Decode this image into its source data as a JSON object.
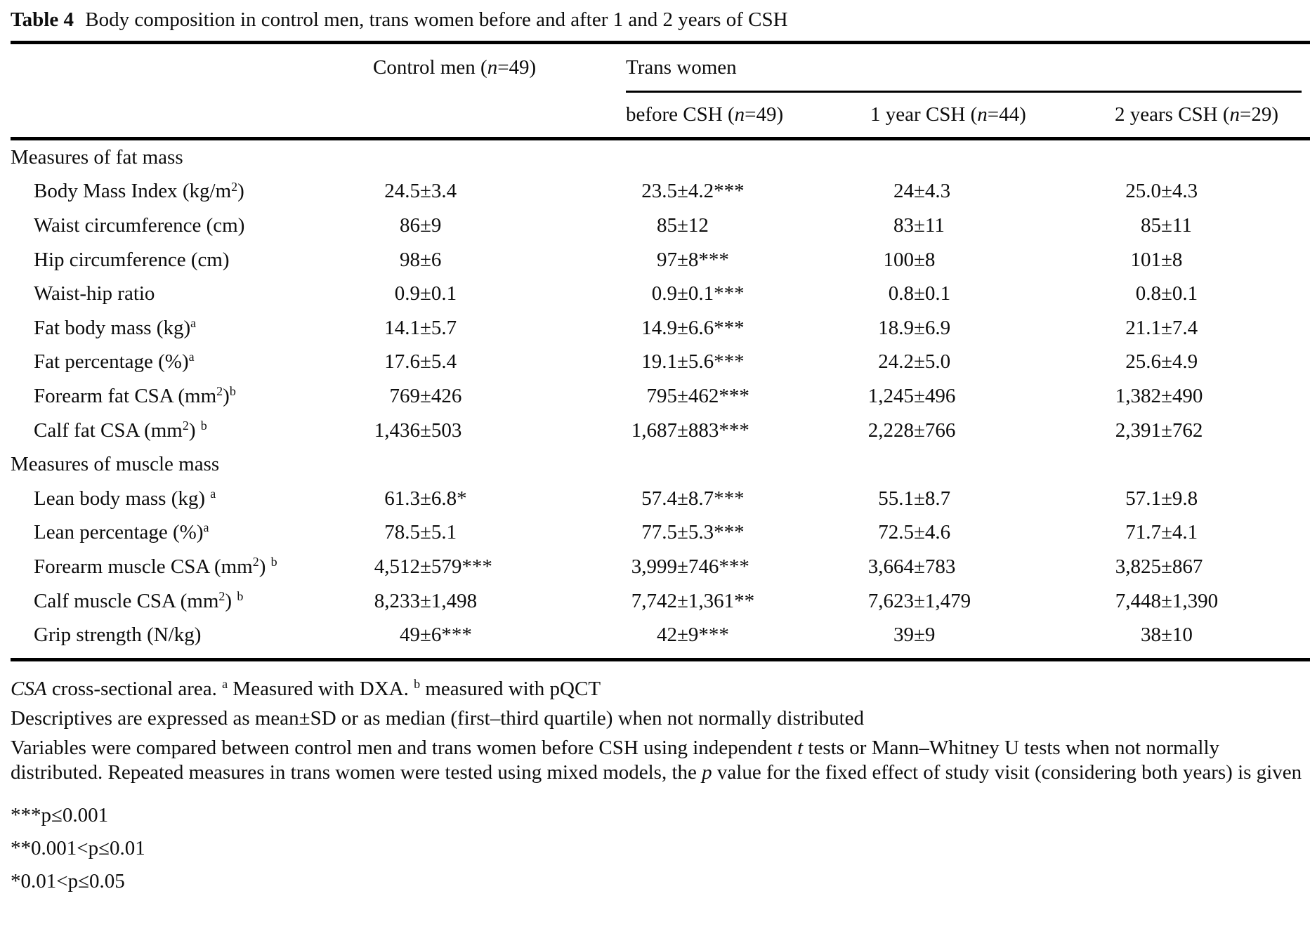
{
  "colors": {
    "text": "#0d0d0d",
    "background": "#ffffff",
    "rule": "#000000"
  },
  "title": {
    "parts": [
      {
        "b": "Table 4"
      },
      " Body composition in control men, trans women before and after 1 and 2 years of CSH"
    ]
  },
  "header": {
    "control": [
      "Control men (",
      {
        "i": "n"
      },
      "=49)"
    ],
    "group": "Trans women",
    "subcols": [
      [
        "before CSH (",
        {
          "i": "n"
        },
        "=49)"
      ],
      [
        "1 year CSH (",
        {
          "i": "n"
        },
        "=44)"
      ],
      [
        "2 years CSH (",
        {
          "i": "n"
        },
        "=29)"
      ]
    ]
  },
  "sections": [
    {
      "label": "Measures of fat mass",
      "rows": [
        {
          "label": [
            "Body Mass Index (kg/m",
            {
              "sup": "2"
            },
            ")"
          ],
          "values": [
            "24.5±3.4",
            "23.5±4.2***",
            "24±4.3",
            "25.0±4.3"
          ]
        },
        {
          "label": [
            "Waist circumference (cm)"
          ],
          "values": [
            "86±9",
            "85±12",
            "83±11",
            "85±11"
          ]
        },
        {
          "label": [
            "Hip circumference (cm)"
          ],
          "values": [
            "98±6",
            "97±8***",
            "100±8",
            "101±8"
          ]
        },
        {
          "label": [
            "Waist-hip ratio"
          ],
          "values": [
            "0.9±0.1",
            "0.9±0.1***",
            "0.8±0.1",
            "0.8±0.1"
          ]
        },
        {
          "label": [
            "Fat body mass (kg)",
            {
              "sup": "a"
            }
          ],
          "values": [
            "14.1±5.7",
            "14.9±6.6***",
            "18.9±6.9",
            "21.1±7.4"
          ]
        },
        {
          "label": [
            "Fat percentage (%)",
            {
              "sup": "a"
            }
          ],
          "values": [
            "17.6±5.4",
            "19.1±5.6***",
            "24.2±5.0",
            "25.6±4.9"
          ]
        },
        {
          "label": [
            "Forearm fat CSA (mm",
            {
              "sup": "2"
            },
            ")",
            {
              "sup": "b"
            }
          ],
          "values": [
            "769±426",
            "795±462***",
            "1,245±496",
            "1,382±490"
          ]
        },
        {
          "label": [
            "Calf fat CSA (mm",
            {
              "sup": "2"
            },
            ") ",
            {
              "sup": "b"
            }
          ],
          "values": [
            "1,436±503",
            "1,687±883***",
            "2,228±766",
            "2,391±762"
          ]
        }
      ]
    },
    {
      "label": "Measures of muscle mass",
      "rows": [
        {
          "label": [
            "Lean body mass (kg) ",
            {
              "sup": "a"
            }
          ],
          "values": [
            "61.3±6.8*",
            "57.4±8.7***",
            "55.1±8.7",
            "57.1±9.8"
          ]
        },
        {
          "label": [
            "Lean percentage (%)",
            {
              "sup": "a"
            }
          ],
          "values": [
            "78.5±5.1",
            "77.5±5.3***",
            "72.5±4.6",
            "71.7±4.1"
          ]
        },
        {
          "label": [
            "Forearm muscle CSA (mm",
            {
              "sup": "2"
            },
            ") ",
            {
              "sup": "b"
            }
          ],
          "values": [
            "4,512±579***",
            "3,999±746***",
            "3,664±783",
            "3,825±867"
          ]
        },
        {
          "label": [
            "Calf muscle CSA (mm",
            {
              "sup": "2"
            },
            ") ",
            {
              "sup": "b"
            }
          ],
          "values": [
            "8,233±1,498",
            "7,742±1,361**",
            "7,623±1,479",
            "7,448±1,390"
          ]
        },
        {
          "label": [
            "Grip strength (N/kg)"
          ],
          "values": [
            "49±6***",
            "42±9***",
            "39±9",
            "38±10"
          ]
        }
      ]
    }
  ],
  "footnotes": [
    {
      "parts": [
        {
          "i": "CSA"
        },
        " cross-sectional area. ",
        {
          "sup": "a"
        },
        " Measured with DXA. ",
        {
          "sup": "b"
        },
        " measured with pQCT"
      ]
    },
    {
      "parts": [
        "Descriptives are expressed as mean±SD or as median (first–third quartile) when not normally distributed"
      ]
    },
    {
      "parts": [
        "Variables were compared between control men and trans women before CSH using independent ",
        {
          "i": "t"
        },
        " tests or Mann–Whitney U tests when not normally distributed. Repeated measures in trans women were tested using mixed models, the ",
        {
          "i": "p"
        },
        " value for the fixed effect of study visit (considering both years) is given"
      ]
    }
  ],
  "significance": [
    "***p≤0.001",
    "**0.001<p≤0.01",
    "*0.01<p≤0.05"
  ]
}
